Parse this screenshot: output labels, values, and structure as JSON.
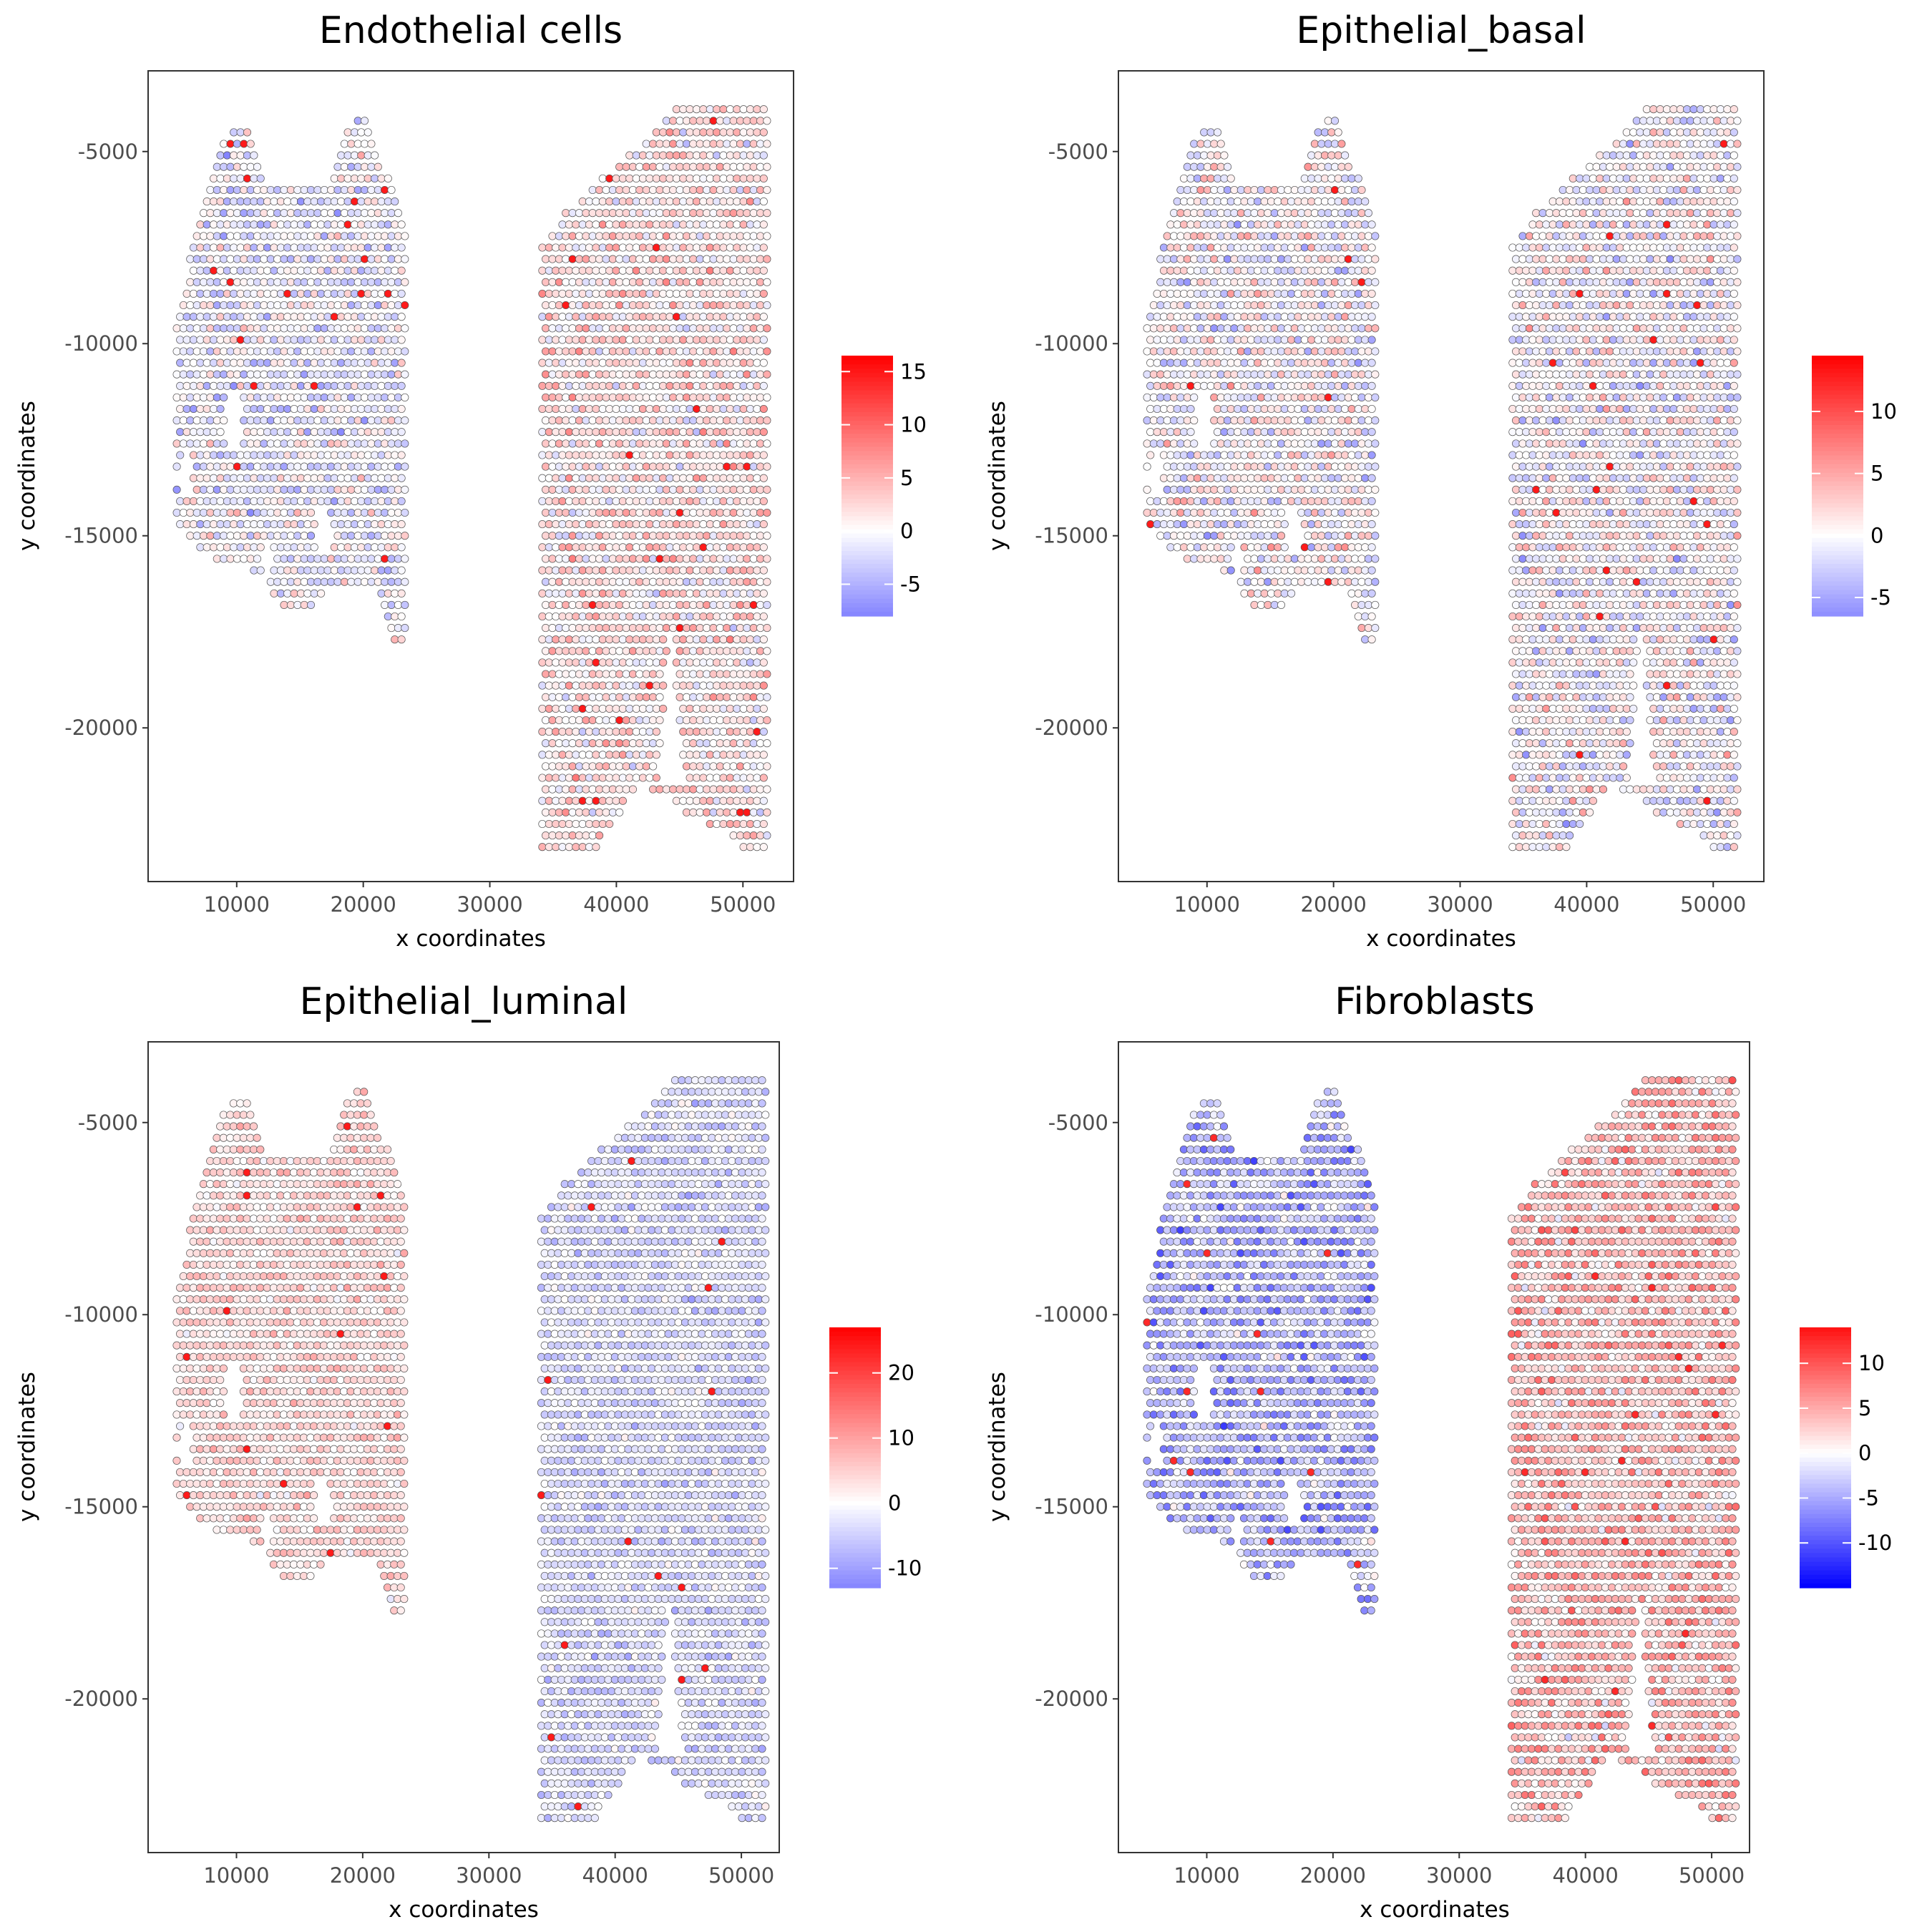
{
  "figure": {
    "background": "#ffffff",
    "point_outline": "#555555",
    "low_color": "#0000ff",
    "mid_color": "#ffffff",
    "high_color": "#ff0000"
  },
  "chart_data": [
    {
      "type": "scatter",
      "title": "Endothelial cells",
      "xlabel": "x coordinates",
      "ylabel": "y coordinates",
      "xlim": [
        3000,
        54000
      ],
      "ylim": [
        -24000,
        -2900
      ],
      "xticks": [
        10000,
        20000,
        30000,
        40000,
        50000
      ],
      "xtick_labels": [
        "10000",
        "20000",
        "30000",
        "40000",
        "50000"
      ],
      "yticks": [
        -5000,
        -10000,
        -15000,
        -20000
      ],
      "ytick_labels": [
        "-5000",
        "-10000",
        "-15000",
        "-20000"
      ],
      "colorbar": {
        "min": -8.0,
        "max": 16.5,
        "ticks": [
          15,
          10,
          5,
          0,
          -5
        ],
        "tick_labels": [
          "15",
          "10",
          "5",
          "0",
          "-5"
        ]
      },
      "value_range": [
        -8.0,
        16.5
      ],
      "value_bias": 0.5,
      "grid": false,
      "legend": "right"
    },
    {
      "type": "scatter",
      "title": "Epithelial_basal",
      "xlabel": "x coordinates",
      "ylabel": "y coordinates",
      "xlim": [
        3000,
        54000
      ],
      "ylim": [
        -24000,
        -2900
      ],
      "xticks": [
        10000,
        20000,
        30000,
        40000,
        50000
      ],
      "xtick_labels": [
        "10000",
        "20000",
        "30000",
        "40000",
        "50000"
      ],
      "yticks": [
        -5000,
        -10000,
        -15000,
        -20000
      ],
      "ytick_labels": [
        "-5000",
        "-10000",
        "-15000",
        "-20000"
      ],
      "colorbar": {
        "min": -6.5,
        "max": 14.5,
        "ticks": [
          10,
          5,
          0,
          -5
        ],
        "tick_labels": [
          "10",
          "5",
          "0",
          "-5"
        ]
      },
      "value_range": [
        -6.5,
        14.5
      ],
      "value_bias": 0.0,
      "grid": false,
      "legend": "right"
    },
    {
      "type": "scatter",
      "title": "Epithelial_luminal",
      "xlabel": "x coordinates",
      "ylabel": "y coordinates",
      "xlim": [
        3000,
        53000
      ],
      "ylim": [
        -24000,
        -2900
      ],
      "xticks": [
        10000,
        20000,
        30000,
        40000,
        50000
      ],
      "xtick_labels": [
        "10000",
        "20000",
        "30000",
        "40000",
        "50000"
      ],
      "yticks": [
        -5000,
        -10000,
        -15000,
        -20000
      ],
      "ytick_labels": [
        "-5000",
        "-10000",
        "-15000",
        "-20000"
      ],
      "colorbar": {
        "min": -13,
        "max": 27,
        "ticks": [
          20,
          10,
          0,
          -10
        ],
        "tick_labels": [
          "20",
          "10",
          "0",
          "-10"
        ]
      },
      "value_range": [
        -13,
        27
      ],
      "value_bias": 0.0,
      "grid": false,
      "legend": "right"
    },
    {
      "type": "scatter",
      "title": "Fibroblasts",
      "xlabel": "x coordinates",
      "ylabel": "y coordinates",
      "xlim": [
        3000,
        53000
      ],
      "ylim": [
        -24000,
        -2900
      ],
      "xticks": [
        10000,
        20000,
        30000,
        40000,
        50000
      ],
      "xtick_labels": [
        "10000",
        "20000",
        "30000",
        "40000",
        "50000"
      ],
      "yticks": [
        -5000,
        -10000,
        -15000,
        -20000
      ],
      "ytick_labels": [
        "-5000",
        "-10000",
        "-15000",
        "-20000"
      ],
      "colorbar": {
        "min": -15,
        "max": 14,
        "ticks": [
          10,
          5,
          0,
          -5,
          -10
        ],
        "tick_labels": [
          "10",
          "5",
          "0",
          "-5",
          "-10"
        ]
      },
      "value_range": [
        -15,
        14
      ],
      "value_bias": 0.0,
      "grid": false,
      "legend": "right"
    }
  ]
}
